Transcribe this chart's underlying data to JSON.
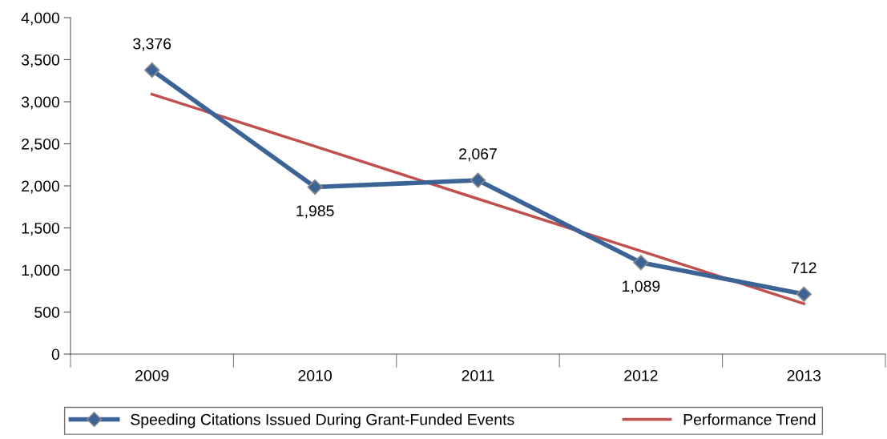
{
  "chart_data": {
    "type": "line",
    "categories": [
      "2009",
      "2010",
      "2011",
      "2012",
      "2013"
    ],
    "series": [
      {
        "name": "Speeding Citations Issued During Grant-Funded Events",
        "color": "#3c6396",
        "values": [
          3376,
          1985,
          2067,
          1089,
          712
        ],
        "value_labels": [
          "3,376",
          "1,985",
          "2,067",
          "1,089",
          "712"
        ],
        "marker": "diamond"
      },
      {
        "name": "Performance Trend",
        "type": "line",
        "color": "#c0504d",
        "values": [
          3090,
          2470,
          1845,
          1225,
          600
        ],
        "marker": "none"
      }
    ],
    "ylim": [
      0,
      4000
    ],
    "yticks": [
      0,
      500,
      {
        "value": 1000,
        "label": "1,000"
      },
      {
        "value": 1500,
        "label": "1,500"
      },
      {
        "value": 2000,
        "label": "2,000"
      },
      {
        "value": 2500,
        "label": "2,500"
      },
      {
        "value": 3000,
        "label": "3,000"
      },
      {
        "value": 3500,
        "label": "3,500"
      },
      {
        "value": 4000,
        "label": "4,000"
      }
    ],
    "grid": false,
    "legend": "bottom"
  }
}
